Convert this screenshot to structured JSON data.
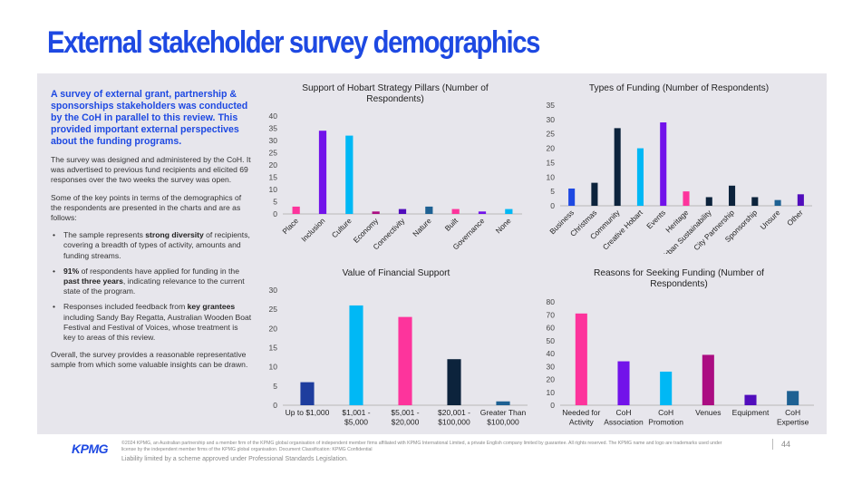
{
  "title": "External stakeholder survey demographics",
  "left": {
    "intro": "A survey of external grant, partnership & sponsorships stakeholders was conducted by the CoH in parallel to this review. This provided important external perspectives about the funding programs.",
    "p1": "The survey was designed and administered by the CoH. It was advertised to previous fund recipients and elicited 69 responses over the two weeks the survey was open.",
    "p2": "Some of the key points in terms of the demographics of the respondents are presented in the charts and are as follows:",
    "b1_pre": "The sample represents ",
    "b1_bold": "strong diversity",
    "b1_post": " of recipients, covering a breadth of types of activity, amounts and funding streams.",
    "b2_bold": "91%",
    "b2_mid": " of respondents have applied for funding in the ",
    "b2_bold2": "past three years",
    "b2_post": ", indicating relevance to the current state of the program.",
    "b3_pre": "Responses included feedback from ",
    "b3_bold": "key grantees",
    "b3_post": " including Sandy Bay Regatta, Australian Wooden Boat Festival and Festival of Voices, whose treatment is key to areas of this review.",
    "p3": "Overall, the survey provides a reasonable representative sample from which some valuable insights can be drawn."
  },
  "footer": {
    "logo": "KPMG",
    "legal": "©2024 KPMG, an Australian partnership and a member firm of the KPMG global organisation of independent member firms affiliated with KPMG International Limited, a private English company limited by guarantee. All rights reserved. The KPMG name and logo are trademarks used under license by the independent member firms of the KPMG global organisation. Document Classification: KPMG Confidential",
    "liability": "Liability limited by a scheme approved under Professional Standards Legislation.",
    "page": "44"
  },
  "chart_data": [
    {
      "id": "pillars",
      "type": "bar",
      "title": "Support of Hobart Strategy Pillars (Number of Respondents)",
      "categories": [
        "Place",
        "Inclusion",
        "Culture",
        "Economy",
        "Connectivity",
        "Nature",
        "Built",
        "Governance",
        "None"
      ],
      "values": [
        3,
        34,
        32,
        1,
        2,
        3,
        2,
        1,
        2
      ],
      "colors": [
        "#fd349c",
        "#7213ea",
        "#00b8f5",
        "#ab0d82",
        "#510dbc",
        "#1e6193",
        "#fd349c",
        "#7213ea",
        "#00b8f5"
      ],
      "ylim": [
        0,
        40
      ],
      "yticks": [
        0,
        5,
        10,
        15,
        20,
        25,
        30,
        35,
        40
      ],
      "label_rotate": true
    },
    {
      "id": "funding-types",
      "type": "bar",
      "title": "Types of Funding (Number of Respondents)",
      "categories": [
        "Business",
        "Christmas",
        "Community",
        "Creative Hobart",
        "Events",
        "Heritage",
        "Urban Sustainability",
        "City Partnership",
        "Sponsorship",
        "Unsure",
        "Other"
      ],
      "values": [
        6,
        8,
        27,
        20,
        29,
        5,
        3,
        7,
        3,
        2,
        4
      ],
      "colors": [
        "#1e49e2",
        "#0c233c",
        "#0c233c",
        "#00b8f5",
        "#7213ea",
        "#fd349c",
        "#0c233c",
        "#0c233c",
        "#0c233c",
        "#1e6193",
        "#510dbc"
      ],
      "ylim": [
        0,
        35
      ],
      "yticks": [
        0,
        5,
        10,
        15,
        20,
        25,
        30,
        35
      ],
      "label_rotate": true
    },
    {
      "id": "financial-value",
      "type": "bar",
      "title": "Value of Financial Support",
      "categories": [
        "Up to $1,000",
        "$1,001 - $5,000",
        "$5,001 - $20,000",
        "$20,001 - $100,000",
        "Greater Than $100,000"
      ],
      "values": [
        6,
        26,
        23,
        12,
        1
      ],
      "colors": [
        "#1e3d9e",
        "#00b8f5",
        "#fd349c",
        "#0c233c",
        "#1e6193"
      ],
      "ylim": [
        0,
        30
      ],
      "yticks": [
        0,
        5,
        10,
        15,
        20,
        25,
        30
      ],
      "label_rotate": false
    },
    {
      "id": "reasons",
      "type": "bar",
      "title": "Reasons for Seeking Funding (Number of Respondents)",
      "categories": [
        "Needed for Activity",
        "CoH Association",
        "CoH Promotion",
        "Venues",
        "Equipment",
        "CoH Expertise"
      ],
      "values": [
        71,
        34,
        26,
        39,
        8,
        11
      ],
      "colors": [
        "#fd349c",
        "#7213ea",
        "#00b8f5",
        "#ab0d82",
        "#510dbc",
        "#1e6193"
      ],
      "ylim": [
        0,
        80
      ],
      "yticks": [
        0,
        10,
        20,
        30,
        40,
        50,
        60,
        70,
        80
      ],
      "label_rotate": false
    }
  ]
}
